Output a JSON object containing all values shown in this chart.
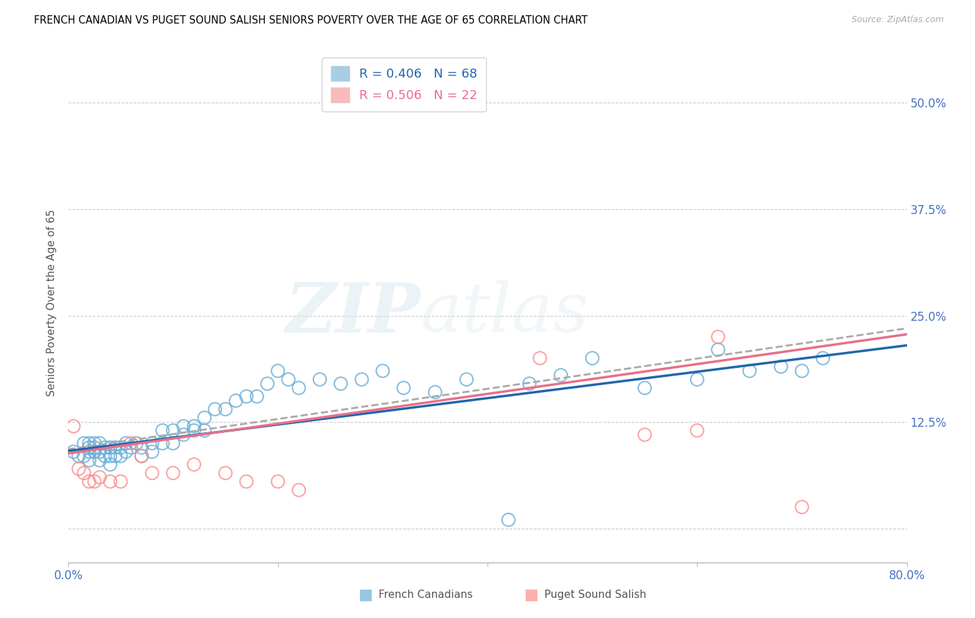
{
  "title": "FRENCH CANADIAN VS PUGET SOUND SALISH SENIORS POVERTY OVER THE AGE OF 65 CORRELATION CHART",
  "source": "Source: ZipAtlas.com",
  "ylabel": "Seniors Poverty Over the Age of 65",
  "xlim": [
    0.0,
    0.8
  ],
  "ylim": [
    -0.04,
    0.57
  ],
  "ytick_positions": [
    0.0,
    0.125,
    0.25,
    0.375,
    0.5
  ],
  "ytick_labels": [
    "",
    "12.5%",
    "25.0%",
    "37.5%",
    "50.0%"
  ],
  "r_french": 0.406,
  "n_french": 68,
  "r_salish": 0.506,
  "n_salish": 22,
  "color_french": "#6baed6",
  "color_salish": "#fc8d8d",
  "color_french_line": "#2166ac",
  "color_salish_line": "#e8708a",
  "color_dashed": "#aaaaaa",
  "watermark": "ZIPatlas",
  "french_x": [
    0.005,
    0.01,
    0.015,
    0.015,
    0.02,
    0.02,
    0.02,
    0.02,
    0.025,
    0.025,
    0.025,
    0.03,
    0.03,
    0.03,
    0.035,
    0.035,
    0.04,
    0.04,
    0.04,
    0.045,
    0.045,
    0.05,
    0.05,
    0.055,
    0.055,
    0.06,
    0.065,
    0.07,
    0.07,
    0.08,
    0.08,
    0.09,
    0.09,
    0.1,
    0.1,
    0.11,
    0.11,
    0.12,
    0.12,
    0.13,
    0.13,
    0.14,
    0.15,
    0.16,
    0.17,
    0.18,
    0.19,
    0.2,
    0.21,
    0.22,
    0.24,
    0.26,
    0.28,
    0.3,
    0.32,
    0.35,
    0.38,
    0.42,
    0.44,
    0.47,
    0.5,
    0.55,
    0.6,
    0.62,
    0.65,
    0.68,
    0.7,
    0.72
  ],
  "french_y": [
    0.09,
    0.085,
    0.085,
    0.1,
    0.08,
    0.09,
    0.095,
    0.1,
    0.09,
    0.095,
    0.1,
    0.08,
    0.09,
    0.1,
    0.085,
    0.095,
    0.075,
    0.085,
    0.095,
    0.085,
    0.095,
    0.085,
    0.095,
    0.09,
    0.1,
    0.095,
    0.1,
    0.085,
    0.095,
    0.09,
    0.1,
    0.1,
    0.115,
    0.1,
    0.115,
    0.11,
    0.12,
    0.115,
    0.12,
    0.115,
    0.13,
    0.14,
    0.14,
    0.15,
    0.155,
    0.155,
    0.17,
    0.185,
    0.175,
    0.165,
    0.175,
    0.17,
    0.175,
    0.185,
    0.165,
    0.16,
    0.175,
    0.01,
    0.17,
    0.18,
    0.2,
    0.165,
    0.175,
    0.21,
    0.185,
    0.19,
    0.185,
    0.2
  ],
  "salish_x": [
    0.005,
    0.01,
    0.015,
    0.02,
    0.025,
    0.03,
    0.04,
    0.05,
    0.06,
    0.07,
    0.08,
    0.1,
    0.12,
    0.15,
    0.17,
    0.2,
    0.22,
    0.45,
    0.55,
    0.6,
    0.62,
    0.7
  ],
  "salish_y": [
    0.12,
    0.07,
    0.065,
    0.055,
    0.055,
    0.06,
    0.055,
    0.055,
    0.1,
    0.085,
    0.065,
    0.065,
    0.075,
    0.065,
    0.055,
    0.055,
    0.045,
    0.2,
    0.11,
    0.115,
    0.225,
    0.025
  ],
  "trend_french_start": 0.091,
  "trend_french_end": 0.215,
  "trend_salish_start": 0.088,
  "trend_salish_end": 0.228,
  "trend_dashed_start": 0.093,
  "trend_dashed_end": 0.235
}
